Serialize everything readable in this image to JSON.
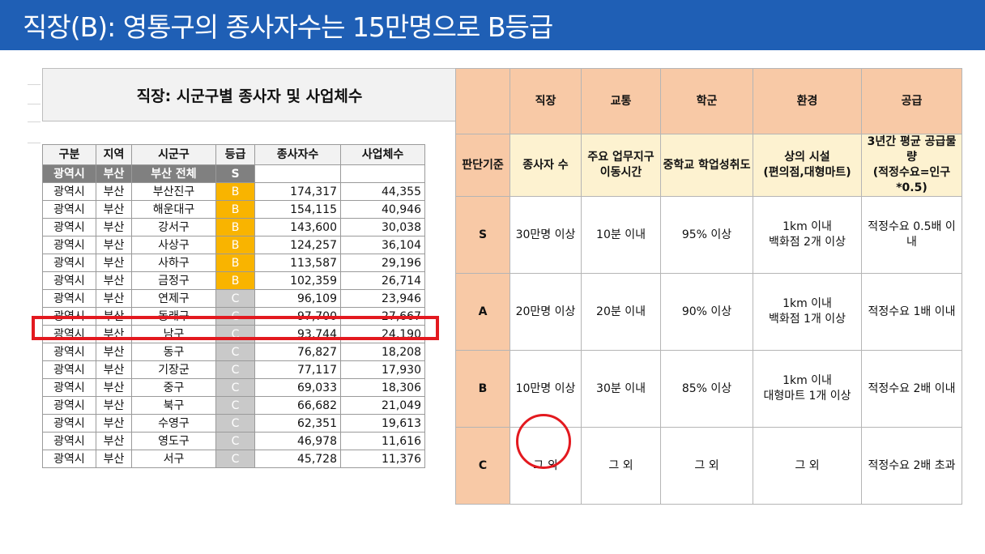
{
  "banner": {
    "title": "직장(B): 영통구의 종사자수는 15만명으로 B등급"
  },
  "sheet": {
    "title": "직장: 시군구별 종사자 및 사업체수",
    "headers": [
      "구분",
      "지역",
      "시군구",
      "등급",
      "종사자수",
      "사업체수"
    ],
    "total": {
      "type": "광역시",
      "region": "부산",
      "district": "부산 전체",
      "grade": "S"
    },
    "rows": [
      {
        "type": "광역시",
        "region": "부산",
        "district": "부산진구",
        "grade": "B",
        "workers": "174,317",
        "companies": "44,355"
      },
      {
        "type": "광역시",
        "region": "부산",
        "district": "해운대구",
        "grade": "B",
        "workers": "154,115",
        "companies": "40,946"
      },
      {
        "type": "광역시",
        "region": "부산",
        "district": "강서구",
        "grade": "B",
        "workers": "143,600",
        "companies": "30,038"
      },
      {
        "type": "광역시",
        "region": "부산",
        "district": "사상구",
        "grade": "B",
        "workers": "124,257",
        "companies": "36,104"
      },
      {
        "type": "광역시",
        "region": "부산",
        "district": "사하구",
        "grade": "B",
        "workers": "113,587",
        "companies": "29,196"
      },
      {
        "type": "광역시",
        "region": "부산",
        "district": "금정구",
        "grade": "B",
        "workers": "102,359",
        "companies": "26,714"
      },
      {
        "type": "광역시",
        "region": "부산",
        "district": "연제구",
        "grade": "C",
        "workers": "96,109",
        "companies": "23,946"
      },
      {
        "type": "광역시",
        "region": "부산",
        "district": "동래구",
        "grade": "C",
        "workers": "97,700",
        "companies": "27,667"
      },
      {
        "type": "광역시",
        "region": "부산",
        "district": "남구",
        "grade": "C",
        "workers": "93,744",
        "companies": "24,190"
      },
      {
        "type": "광역시",
        "region": "부산",
        "district": "동구",
        "grade": "C",
        "workers": "76,827",
        "companies": "18,208"
      },
      {
        "type": "광역시",
        "region": "부산",
        "district": "기장군",
        "grade": "C",
        "workers": "77,117",
        "companies": "17,930"
      },
      {
        "type": "광역시",
        "region": "부산",
        "district": "중구",
        "grade": "C",
        "workers": "69,033",
        "companies": "18,306"
      },
      {
        "type": "광역시",
        "region": "부산",
        "district": "북구",
        "grade": "C",
        "workers": "66,682",
        "companies": "21,049"
      },
      {
        "type": "광역시",
        "region": "부산",
        "district": "수영구",
        "grade": "C",
        "workers": "62,351",
        "companies": "19,613"
      },
      {
        "type": "광역시",
        "region": "부산",
        "district": "영도구",
        "grade": "C",
        "workers": "46,978",
        "companies": "11,616"
      },
      {
        "type": "광역시",
        "region": "부산",
        "district": "서구",
        "grade": "C",
        "workers": "45,728",
        "companies": "11,376"
      }
    ]
  },
  "criteria": {
    "categories": [
      "직장",
      "교통",
      "학군",
      "환경",
      "공급"
    ],
    "basis_label": "판단기준",
    "basis": [
      "종사자 수",
      "주요 업무지구\n이동시간",
      "중학교 학업성취도",
      "상의 시설\n(편의점,대형마트)",
      "3년간 평균 공급물량\n(적정수요=인구*0.5)"
    ],
    "levels": [
      {
        "grade": "S",
        "cells": [
          "30만명 이상",
          "10분 이내",
          "95% 이상",
          "1km 이내\n백화점 2개 이상",
          "적정수요 0.5배 이내"
        ]
      },
      {
        "grade": "A",
        "cells": [
          "20만명 이상",
          "20분 이내",
          "90% 이상",
          "1km 이내\n백화점 1개 이상",
          "적정수요 1배 이내"
        ]
      },
      {
        "grade": "B",
        "cells": [
          "10만명 이상",
          "30분 이내",
          "85% 이상",
          "1km 이내\n대형마트 1개 이상",
          "적정수요 2배 이내"
        ]
      },
      {
        "grade": "C",
        "cells": [
          "그 외",
          "그 외",
          "그 외",
          "그 외",
          "적정수요 2배 초과"
        ]
      }
    ]
  }
}
